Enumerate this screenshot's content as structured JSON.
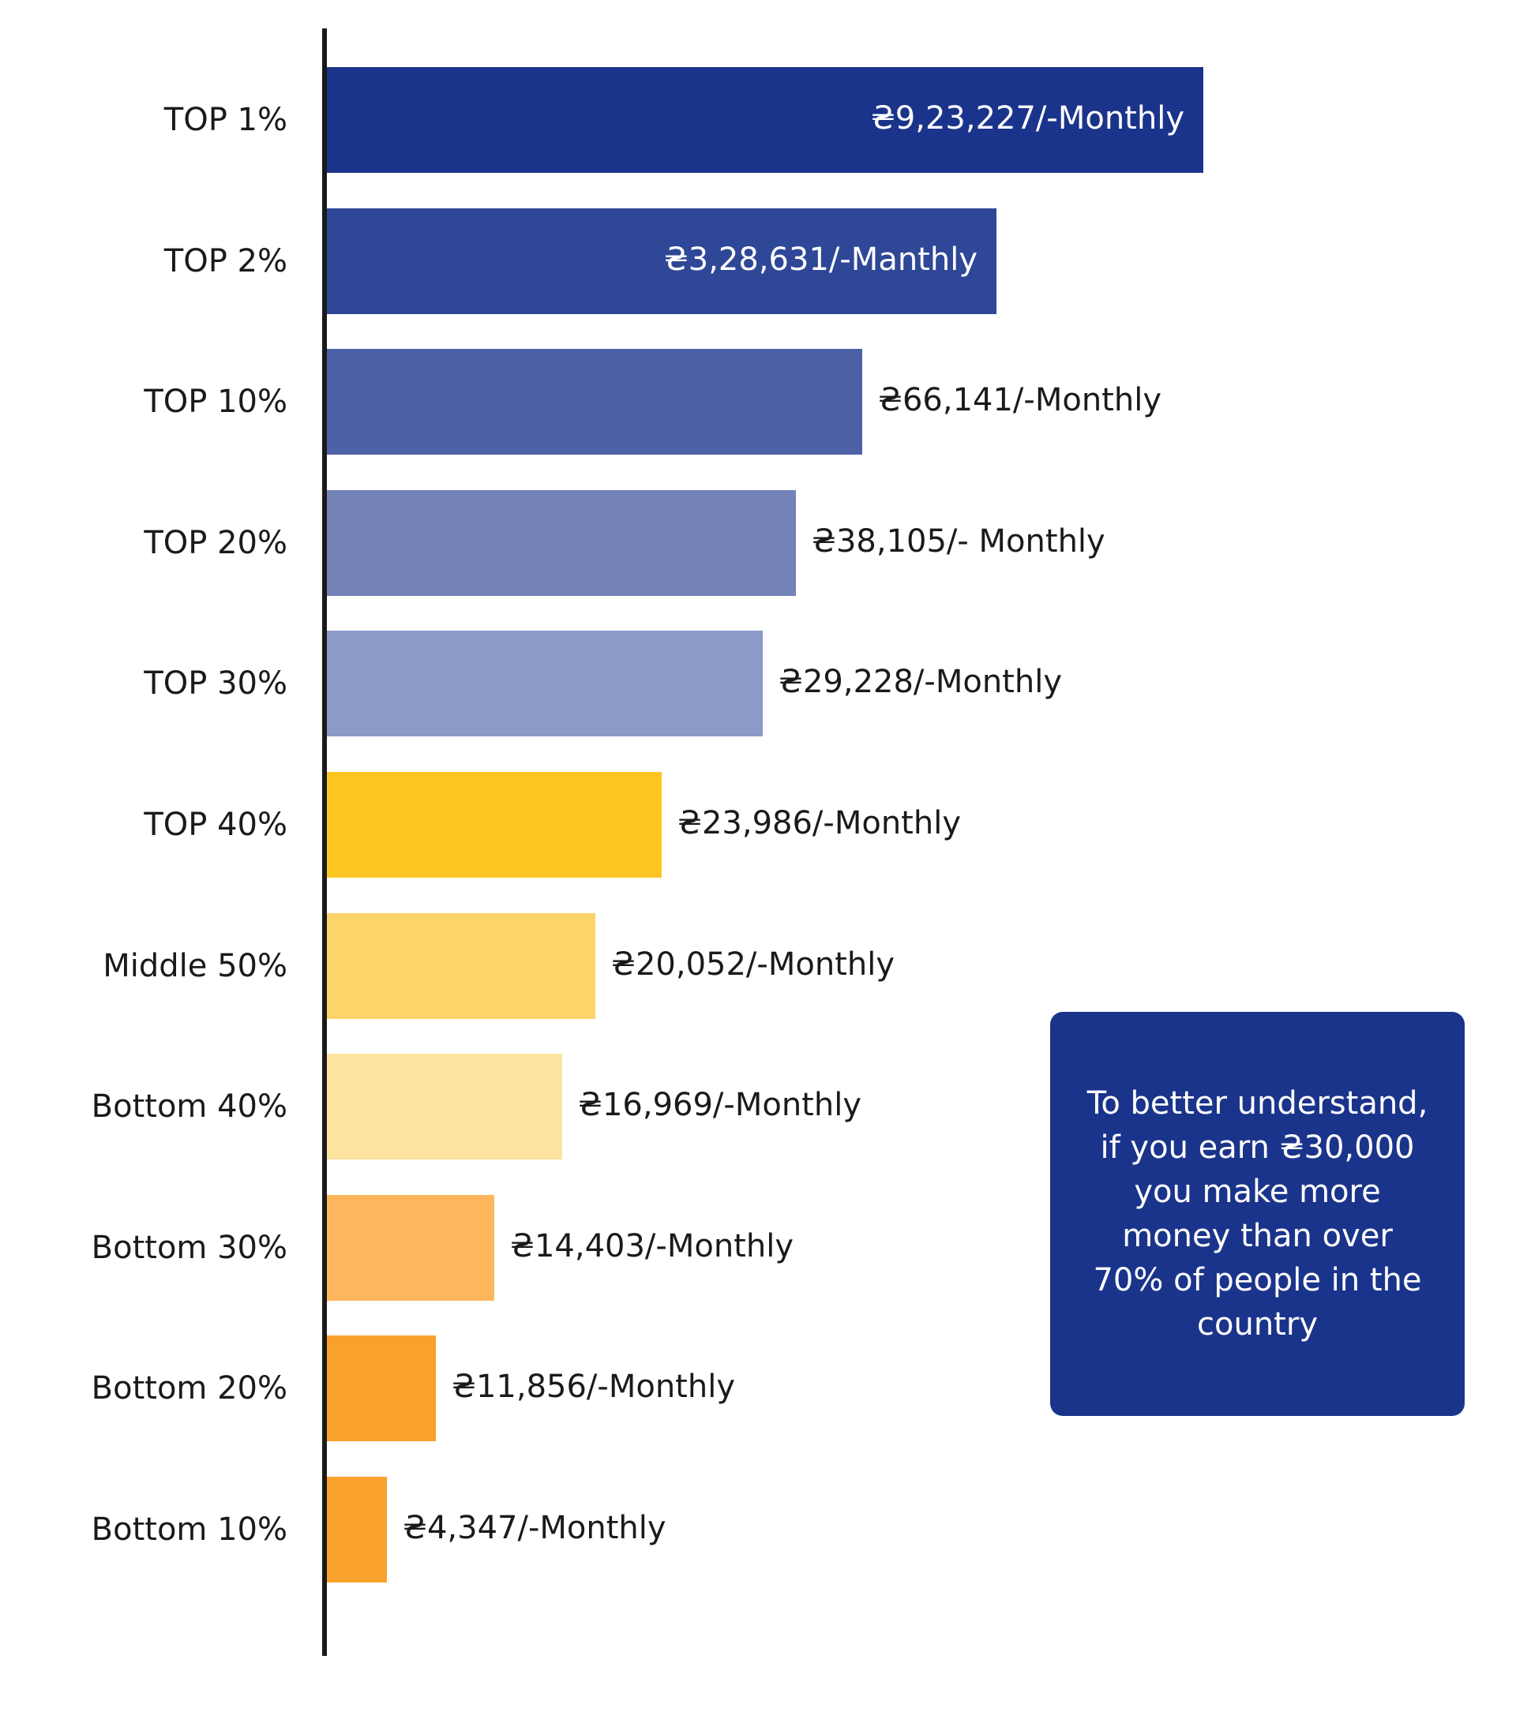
{
  "chart_data": {
    "type": "bar",
    "orientation": "horizontal",
    "categories": [
      "TOP 1%",
      "TOP 2%",
      "TOP 10%",
      "TOP 20%",
      "TOP 30%",
      "TOP 40%",
      "Middle 50%",
      "Bottom 40%",
      "Bottom 30%",
      "Bottom 20%",
      "Bottom 10%"
    ],
    "values": [
      923227,
      328631,
      66141,
      38105,
      29228,
      23986,
      20052,
      16969,
      14403,
      11856,
      4347
    ],
    "value_labels": [
      "₴9,23,227/-Monthly",
      "₴3,28,631/-Manthly",
      "₴66,141/-Monthly",
      "₴38,105/- Monthly",
      "₴29,228/-Monthly",
      "₴23,986/-Monthly",
      "₴20,052/-Monthly",
      "₴16,969/-Monthly",
      "₴14,403/-Monthly",
      "₴11,856/-Monthly",
      "₴4,347/-Monthly"
    ],
    "bar_colors": [
      "#1b348b",
      "#2f4797",
      "#4d62a6",
      "#7383b8",
      "#8b9ac7",
      "#fcc522",
      "#fdd46a",
      "#fde3a0",
      "#fdb65c",
      "#f9a12d",
      "#f9a12d"
    ],
    "label_inside": [
      true,
      true,
      false,
      false,
      false,
      false,
      false,
      false,
      false,
      false,
      false
    ],
    "title": "",
    "xlabel": "",
    "ylabel": "",
    "legend": "none",
    "grid": false
  },
  "callout": {
    "text": "To better understand, if you earn ₴30,000 you make more money than over 70% of people in the country"
  }
}
